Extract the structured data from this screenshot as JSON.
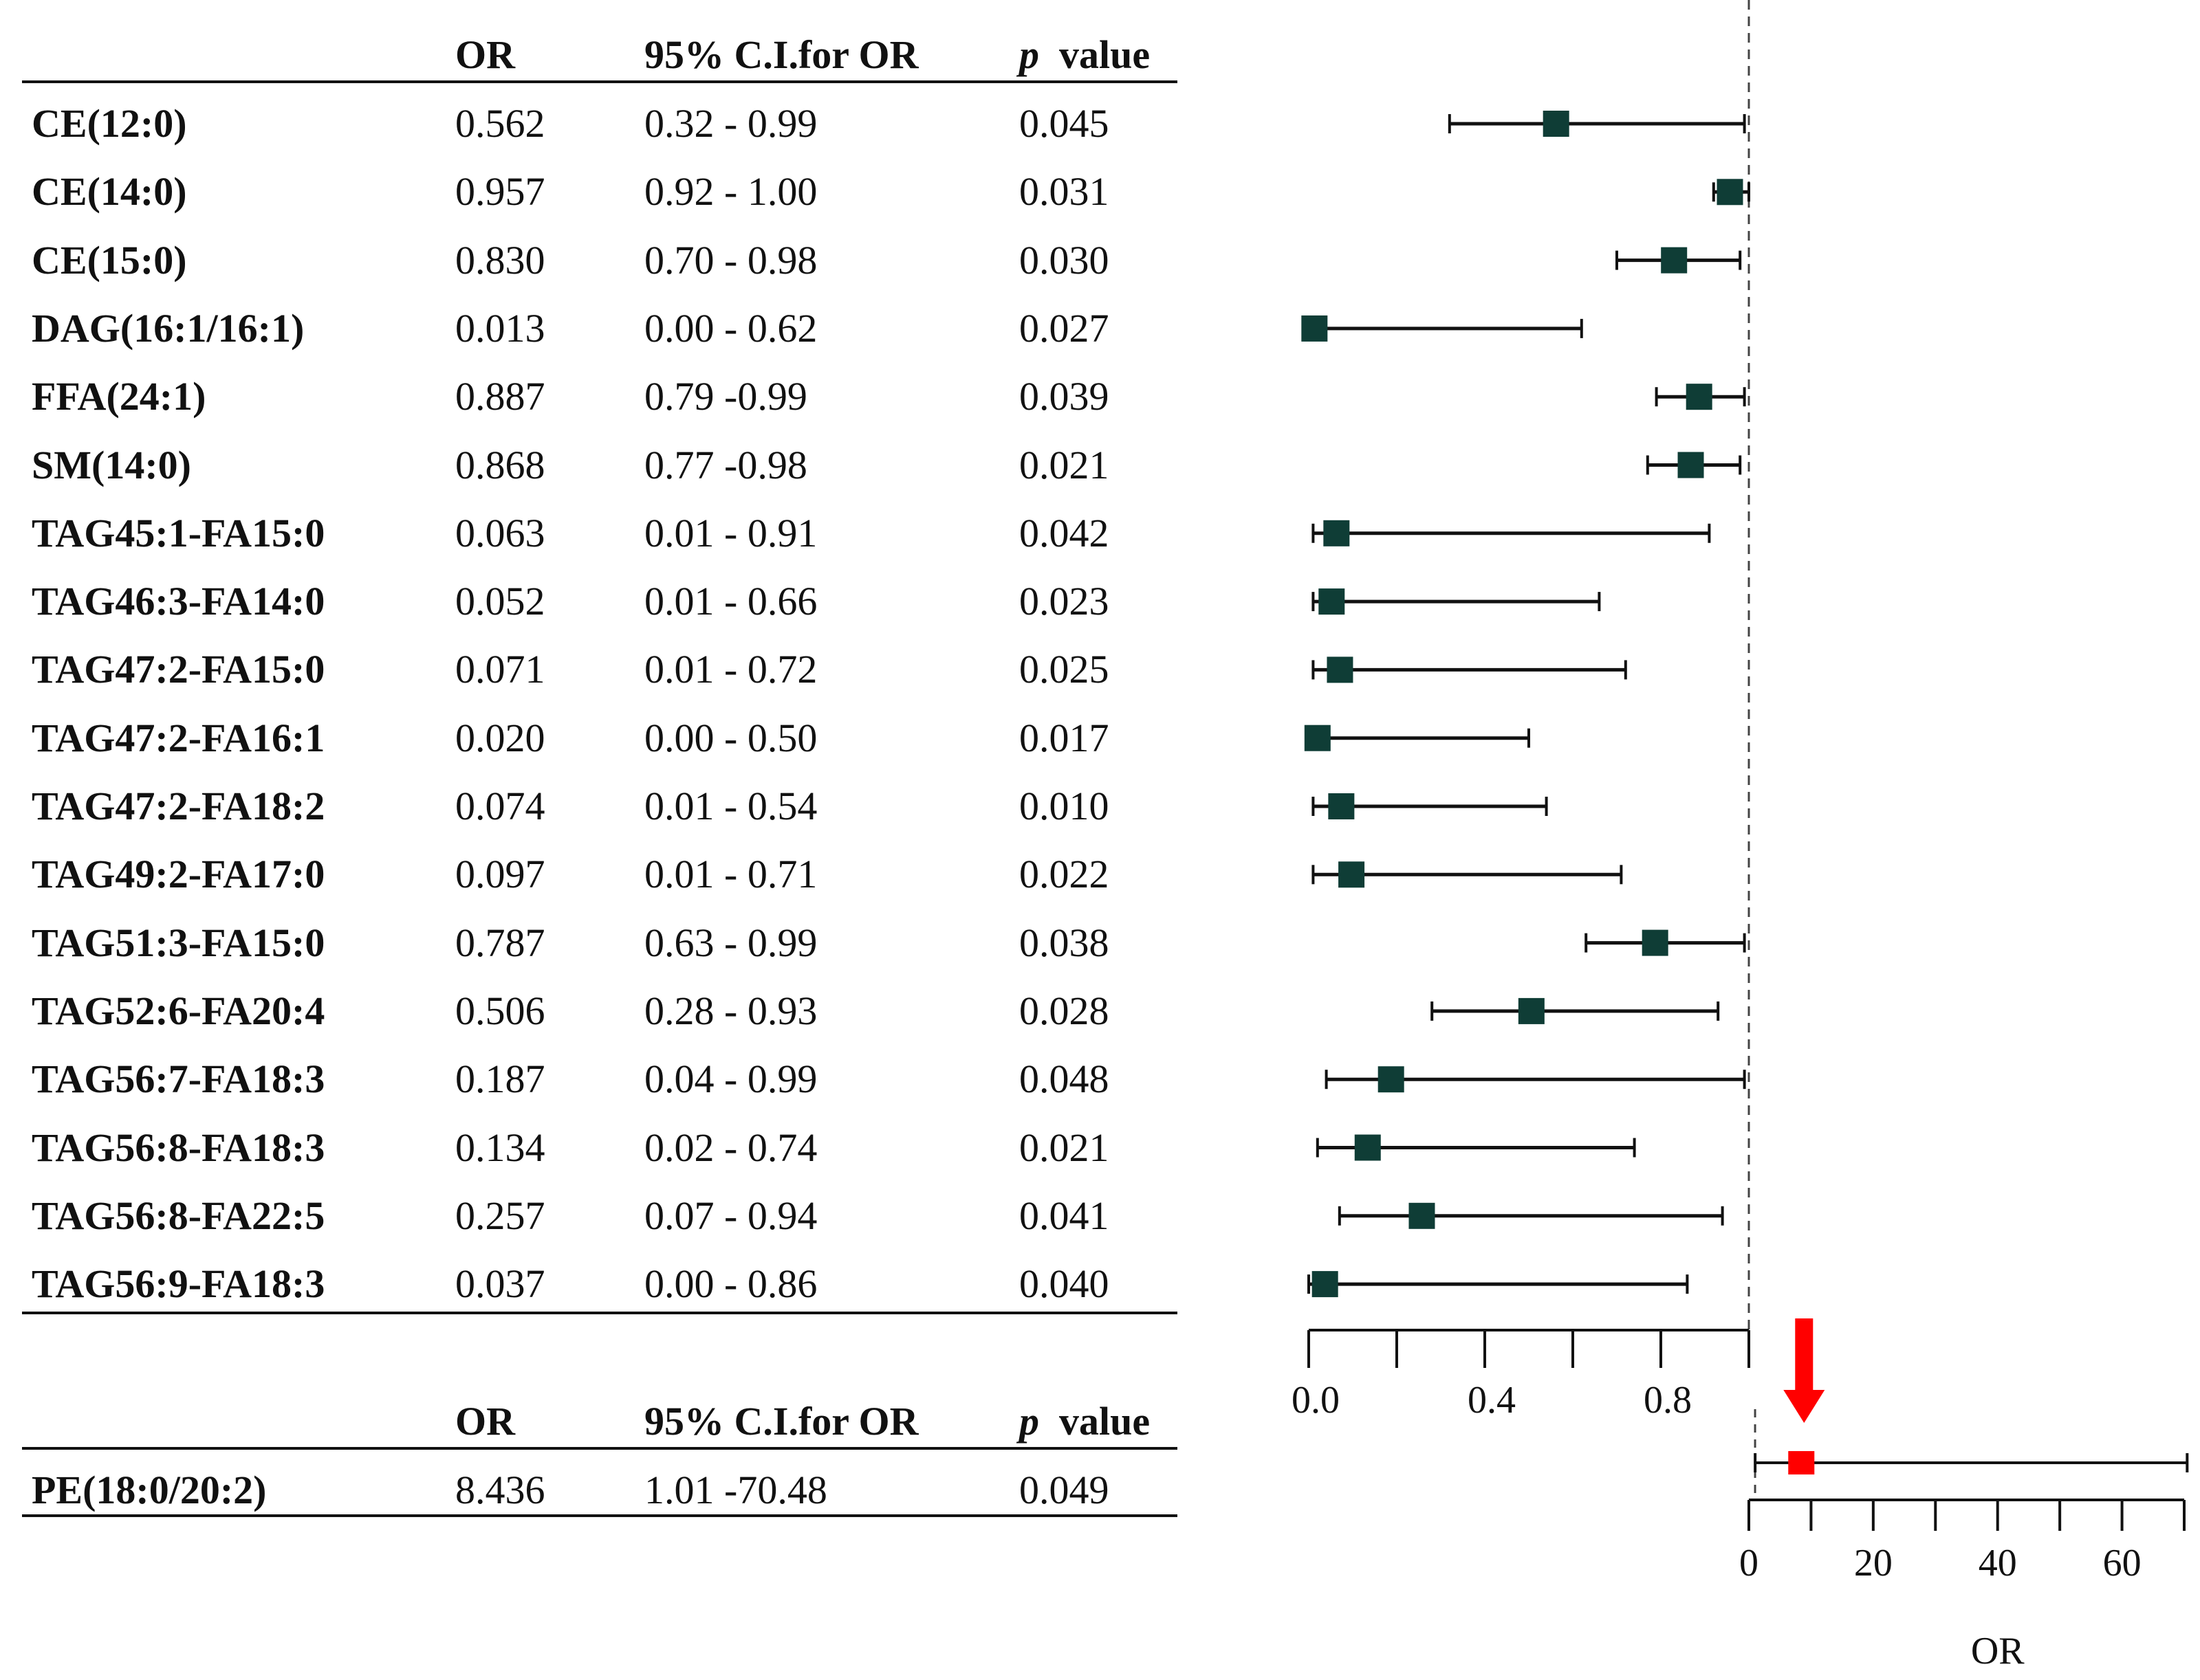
{
  "table": {
    "headers": {
      "or": "OR",
      "ci": "95% C.I.for OR",
      "p_italic": "p",
      "p_rest": "value"
    },
    "rows": [
      {
        "name": "CE(12:0)",
        "or": "0.562",
        "ci": "0.32 - 0.99",
        "p": "0.045"
      },
      {
        "name": "CE(14:0)",
        "or": "0.957",
        "ci": "0.92 - 1.00",
        "p": "0.031"
      },
      {
        "name": "CE(15:0)",
        "or": "0.830",
        "ci": "0.70 - 0.98",
        "p": "0.030"
      },
      {
        "name": "DAG(16:1/16:1)",
        "or": "0.013",
        "ci": "0.00 - 0.62",
        "p": "0.027"
      },
      {
        "name": "FFA(24:1)",
        "or": "0.887",
        "ci": "0.79 -0.99",
        "p": "0.039"
      },
      {
        "name": "SM(14:0)",
        "or": "0.868",
        "ci": "0.77 -0.98",
        "p": "0.021"
      },
      {
        "name": "TAG45:1-FA15:0",
        "or": "0.063",
        "ci": "0.01 - 0.91",
        "p": "0.042"
      },
      {
        "name": "TAG46:3-FA14:0",
        "or": "0.052",
        "ci": "0.01 - 0.66",
        "p": "0.023"
      },
      {
        "name": "TAG47:2-FA15:0",
        "or": "0.071",
        "ci": "0.01 - 0.72",
        "p": "0.025"
      },
      {
        "name": "TAG47:2-FA16:1",
        "or": "0.020",
        "ci": "0.00 - 0.50",
        "p": "0.017"
      },
      {
        "name": "TAG47:2-FA18:2",
        "or": "0.074",
        "ci": "0.01 - 0.54",
        "p": "0.010"
      },
      {
        "name": "TAG49:2-FA17:0",
        "or": "0.097",
        "ci": "0.01 - 0.71",
        "p": "0.022"
      },
      {
        "name": "TAG51:3-FA15:0",
        "or": "0.787",
        "ci": "0.63 - 0.99",
        "p": "0.038"
      },
      {
        "name": "TAG52:6-FA20:4",
        "or": "0.506",
        "ci": "0.28 - 0.93",
        "p": "0.028"
      },
      {
        "name": "TAG56:7-FA18:3",
        "or": "0.187",
        "ci": "0.04 - 0.99",
        "p": "0.048"
      },
      {
        "name": "TAG56:8-FA18:3",
        "or": "0.134",
        "ci": "0.02 - 0.74",
        "p": "0.021"
      },
      {
        "name": "TAG56:8-FA22:5",
        "or": "0.257",
        "ci": "0.07 - 0.94",
        "p": "0.041"
      },
      {
        "name": "TAG56:9-FA18:3",
        "or": "0.037",
        "ci": "0.00 - 0.86",
        "p": "0.040"
      }
    ],
    "row2": {
      "name": "PE(18:0/20:2)",
      "or": "8.436",
      "ci": "1.01 -70.48",
      "p": "0.049"
    }
  },
  "chart_data": [
    {
      "type": "forest",
      "reference_line": 1.0,
      "xlim": [
        0,
        1.0
      ],
      "ticks": [
        0.0,
        0.2,
        0.4,
        0.6,
        0.8,
        1.0
      ],
      "tick_labels": [
        "0.0",
        "0.4",
        "0.8"
      ],
      "tick_label_values": [
        0.0,
        0.4,
        0.8
      ],
      "marker_color": "#0f3d36",
      "series": [
        {
          "name": "CE(12:0)",
          "or": 0.562,
          "lo": 0.32,
          "hi": 0.99
        },
        {
          "name": "CE(14:0)",
          "or": 0.957,
          "lo": 0.92,
          "hi": 1.0
        },
        {
          "name": "CE(15:0)",
          "or": 0.83,
          "lo": 0.7,
          "hi": 0.98
        },
        {
          "name": "DAG(16:1/16:1)",
          "or": 0.013,
          "lo": 0.0,
          "hi": 0.62
        },
        {
          "name": "FFA(24:1)",
          "or": 0.887,
          "lo": 0.79,
          "hi": 0.99
        },
        {
          "name": "SM(14:0)",
          "or": 0.868,
          "lo": 0.77,
          "hi": 0.98
        },
        {
          "name": "TAG45:1-FA15:0",
          "or": 0.063,
          "lo": 0.01,
          "hi": 0.91
        },
        {
          "name": "TAG46:3-FA14:0",
          "or": 0.052,
          "lo": 0.01,
          "hi": 0.66
        },
        {
          "name": "TAG47:2-FA15:0",
          "or": 0.071,
          "lo": 0.01,
          "hi": 0.72
        },
        {
          "name": "TAG47:2-FA16:1",
          "or": 0.02,
          "lo": 0.0,
          "hi": 0.5
        },
        {
          "name": "TAG47:2-FA18:2",
          "or": 0.074,
          "lo": 0.01,
          "hi": 0.54
        },
        {
          "name": "TAG49:2-FA17:0",
          "or": 0.097,
          "lo": 0.01,
          "hi": 0.71
        },
        {
          "name": "TAG51:3-FA15:0",
          "or": 0.787,
          "lo": 0.63,
          "hi": 0.99
        },
        {
          "name": "TAG52:6-FA20:4",
          "or": 0.506,
          "lo": 0.28,
          "hi": 0.93
        },
        {
          "name": "TAG56:7-FA18:3",
          "or": 0.187,
          "lo": 0.04,
          "hi": 0.99
        },
        {
          "name": "TAG56:8-FA18:3",
          "or": 0.134,
          "lo": 0.02,
          "hi": 0.74
        },
        {
          "name": "TAG56:8-FA22:5",
          "or": 0.257,
          "lo": 0.07,
          "hi": 0.94
        },
        {
          "name": "TAG56:9-FA18:3",
          "or": 0.037,
          "lo": 0.0,
          "hi": 0.86
        }
      ]
    },
    {
      "type": "forest",
      "reference_line": 1.0,
      "xlim": [
        0,
        70
      ],
      "ticks": [
        0,
        10,
        20,
        30,
        40,
        50,
        60,
        70
      ],
      "tick_labels": [
        "0",
        "20",
        "40",
        "60"
      ],
      "tick_label_values": [
        0,
        20,
        40,
        60
      ],
      "xlabel": "OR",
      "marker_color": "#ff0000",
      "annotation": "red arrow pointing down at PE(18:0/20:2)",
      "series": [
        {
          "name": "PE(18:0/20:2)",
          "or": 8.436,
          "lo": 1.01,
          "hi": 70.48
        }
      ]
    }
  ]
}
